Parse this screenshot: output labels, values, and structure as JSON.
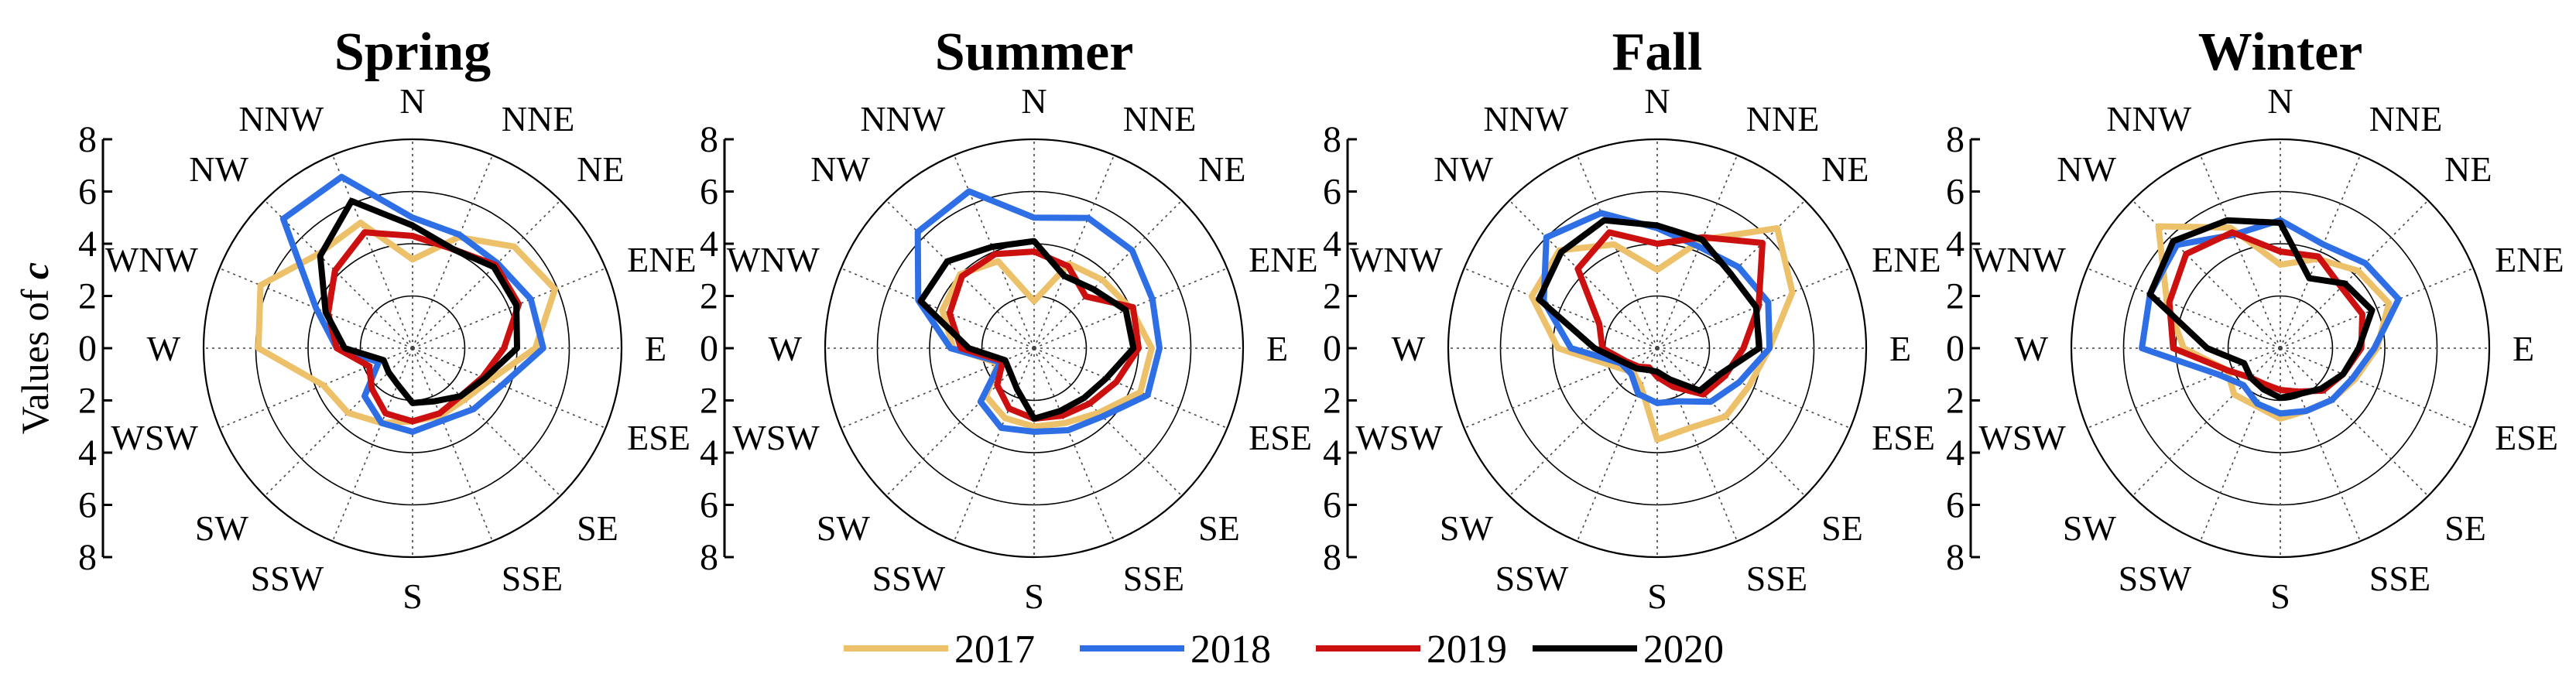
{
  "figure": {
    "ylabel_prefix": "Values of ",
    "ylabel_var": "c"
  },
  "chart_data": {
    "type": "radar",
    "directions": [
      "N",
      "NNE",
      "NE",
      "ENE",
      "E",
      "ESE",
      "SE",
      "SSE",
      "S",
      "SSW",
      "SW",
      "WSW",
      "W",
      "WNW",
      "NW",
      "NNW"
    ],
    "radial_ticks": [
      "8",
      "6",
      "4",
      "2",
      "0",
      "2",
      "4",
      "6",
      "8"
    ],
    "rlim": [
      0,
      8
    ],
    "legend": {
      "placement": "bottom-center",
      "entries": [
        {
          "name": "2017",
          "color": "#EDC06A"
        },
        {
          "name": "2018",
          "color": "#2E6FE6"
        },
        {
          "name": "2019",
          "color": "#CC1010"
        },
        {
          "name": "2020",
          "color": "#000000"
        }
      ]
    },
    "panels": [
      {
        "title": "Spring",
        "series": [
          {
            "name": "2017",
            "values": [
              3.4,
              4.6,
              5.5,
              5.9,
              4.7,
              3.2,
              2.8,
              2.8,
              2.8,
              3.1,
              3.5,
              3.7,
              5.9,
              6.3,
              5.1,
              5.2
            ]
          },
          {
            "name": "2018",
            "values": [
              5.0,
              4.7,
              4.6,
              4.9,
              5.0,
              3.7,
              3.3,
              3.0,
              3.2,
              3.1,
              2.6,
              1.4,
              2.9,
              4.0,
              7.0,
              7.1
            ]
          },
          {
            "name": "2019",
            "values": [
              4.3,
              4.1,
              4.5,
              4.4,
              3.5,
              2.9,
              2.6,
              2.7,
              2.8,
              2.7,
              2.2,
              1.8,
              2.9,
              3.5,
              4.2,
              4.8
            ]
          },
          {
            "name": "2020",
            "values": [
              4.7,
              4.1,
              4.4,
              4.3,
              4.0,
              3.0,
              2.6,
              2.2,
              2.1,
              1.5,
              1.3,
              1.2,
              2.6,
              3.6,
              5.0,
              6.1
            ]
          }
        ]
      },
      {
        "title": "Summer",
        "series": [
          {
            "name": "2017",
            "values": [
              1.8,
              3.5,
              3.7,
              4.0,
              4.5,
              4.4,
              3.5,
              3.1,
              3.0,
              2.9,
              2.6,
              1.5,
              3.1,
              3.8,
              4.0,
              3.6
            ]
          },
          {
            "name": "2018",
            "values": [
              5.0,
              5.4,
              5.3,
              4.9,
              4.8,
              4.7,
              3.7,
              3.4,
              3.2,
              3.3,
              2.9,
              1.4,
              3.2,
              4.8,
              6.3,
              6.5
            ]
          },
          {
            "name": "2019",
            "values": [
              3.7,
              3.4,
              2.8,
              4.1,
              4.0,
              3.4,
              3.0,
              2.8,
              2.7,
              2.5,
              2.0,
              1.3,
              2.8,
              3.5,
              3.9,
              3.9
            ]
          },
          {
            "name": "2020",
            "values": [
              4.1,
              3.0,
              3.2,
              3.8,
              3.8,
              3.0,
              2.7,
              2.6,
              2.7,
              1.7,
              1.3,
              1.2,
              2.5,
              4.7,
              4.7,
              4.2
            ]
          }
        ]
      },
      {
        "title": "Fall",
        "series": [
          {
            "name": "2017",
            "values": [
              3.0,
              4.5,
              6.5,
              5.6,
              4.3,
              3.8,
              3.7,
              3.3,
              3.5,
              1.6,
              1.3,
              1.8,
              3.8,
              5.2,
              5.3,
              4.3
            ]
          },
          {
            "name": "2018",
            "values": [
              4.6,
              4.2,
              4.4,
              4.6,
              4.3,
              3.4,
              2.9,
              2.2,
              2.1,
              1.9,
              1.4,
              1.5,
              3.3,
              4.7,
              6.0,
              5.6
            ]
          },
          {
            "name": "2019",
            "values": [
              4.0,
              4.6,
              5.7,
              4.2,
              3.3,
              2.8,
              2.5,
              1.6,
              1.1,
              0.8,
              1.0,
              1.3,
              2.1,
              2.4,
              4.3,
              4.8
            ]
          },
          {
            "name": "2020",
            "values": [
              4.7,
              4.5,
              4.0,
              4.1,
              3.9,
              2.6,
              2.3,
              1.3,
              0.9,
              0.9,
              1.1,
              1.4,
              2.4,
              4.9,
              5.2,
              5.3
            ]
          }
        ]
      },
      {
        "title": "Winter",
        "series": [
          {
            "name": "2017",
            "values": [
              3.2,
              3.7,
              4.2,
              4.5,
              3.7,
              3.1,
              2.8,
              2.6,
              2.7,
              2.4,
              2.5,
              2.2,
              3.7,
              4.7,
              6.6,
              5.0
            ]
          },
          {
            "name": "2018",
            "values": [
              4.9,
              4.3,
              4.6,
              4.9,
              3.6,
              3.0,
              2.8,
              2.6,
              2.5,
              2.3,
              2.0,
              2.6,
              5.3,
              5.4,
              5.6,
              4.7
            ]
          },
          {
            "name": "2019",
            "values": [
              3.7,
              3.8,
              3.3,
              3.4,
              3.1,
              2.6,
              2.3,
              1.8,
              1.6,
              1.5,
              1.6,
              2.2,
              4.1,
              4.6,
              5.1,
              4.8
            ]
          },
          {
            "name": "2020",
            "values": [
              4.8,
              2.9,
              3.5,
              3.8,
              3.0,
              2.6,
              2.2,
              1.9,
              1.9,
              1.7,
              1.6,
              1.5,
              2.8,
              5.4,
              5.8,
              5.3
            ]
          }
        ]
      }
    ]
  }
}
